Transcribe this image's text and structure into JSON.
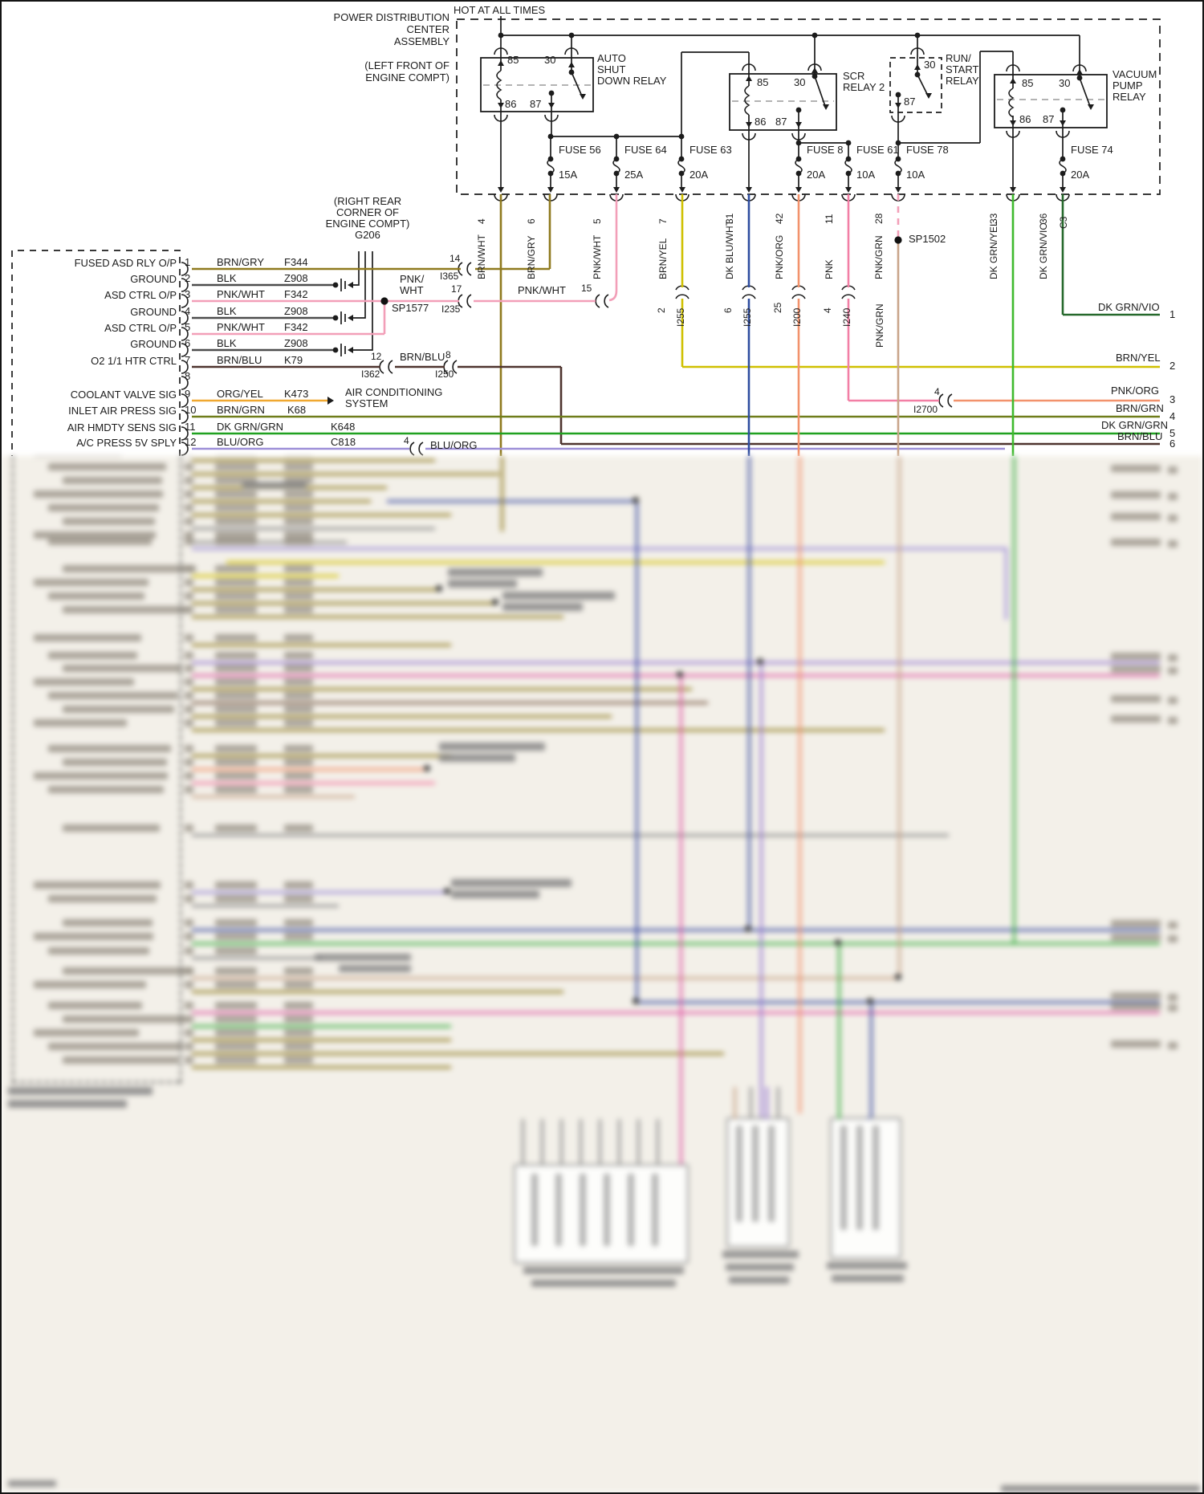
{
  "diagram": {
    "hot_label": "HOT AT ALL TIMES",
    "pdc_title_lines": [
      "POWER DISTRIBUTION",
      "CENTER",
      "ASSEMBLY"
    ],
    "pdc_location_lines": [
      "(LEFT FRONT OF",
      "ENGINE COMPT)"
    ],
    "ground_ref": {
      "lines": [
        "(RIGHT REAR",
        "CORNER OF",
        "ENGINE COMPT)"
      ],
      "id": "G206"
    },
    "relay_pin_labels": {
      "coil_hot": "85",
      "switch_hot": "30",
      "coil_gnd": "86",
      "switch_out": "87"
    },
    "relays": {
      "asd": {
        "name_lines": [
          "AUTO",
          "SHUT",
          "DOWN RELAY"
        ]
      },
      "scr": {
        "name_lines": [
          "SCR",
          "RELAY 2"
        ]
      },
      "run_start": {
        "name_lines": [
          "RUN/",
          "START",
          "RELAY"
        ]
      },
      "vacuum": {
        "name_lines": [
          "VACUUM",
          "PUMP",
          "RELAY"
        ]
      }
    },
    "fuses": [
      {
        "name": "FUSE 56",
        "amp": "15A"
      },
      {
        "name": "FUSE 64",
        "amp": "25A"
      },
      {
        "name": "FUSE 63",
        "amp": "20A"
      },
      {
        "name": "FUSE 8",
        "amp": "20A"
      },
      {
        "name": "FUSE 61",
        "amp": "10A"
      },
      {
        "name": "FUSE 78",
        "amp": "10A"
      },
      {
        "name": "FUSE 74",
        "amp": "20A"
      }
    ],
    "pdc_pins": [
      {
        "num": "4",
        "wire": "BRN/WHT"
      },
      {
        "num": "6",
        "wire": "BRN/GRY"
      },
      {
        "num": "5",
        "wire": "PNK/WHT"
      },
      {
        "num": "7",
        "wire": "BRN/YEL"
      },
      {
        "num": "31",
        "wire": "DK BLU/WHT"
      },
      {
        "num": "42",
        "wire": "PNK/ORG"
      },
      {
        "num": "11",
        "wire": "PNK"
      },
      {
        "num": "28",
        "wire": "PNK/GRN"
      },
      {
        "num": "33",
        "wire": "DK GRN/YEL"
      },
      {
        "num": "36",
        "wire": "DK GRN/VIO"
      }
    ],
    "connector_c3": "C3",
    "splices": {
      "sp1577": "SP1577",
      "sp1502": "SP1502"
    },
    "pnk_grn_lower_label": "PNK/GRN",
    "pcm_rows": [
      {
        "label": "FUSED ASD RLY O/P",
        "pin": "1",
        "wire": "BRN/GRY",
        "code": "F344"
      },
      {
        "label": "GROUND",
        "pin": "2",
        "wire": "BLK",
        "code": "Z908"
      },
      {
        "label": "ASD CTRL O/P",
        "pin": "3",
        "wire": "PNK/WHT",
        "code": "F342"
      },
      {
        "label": "GROUND",
        "pin": "4",
        "wire": "BLK",
        "code": "Z908"
      },
      {
        "label": "ASD CTRL O/P",
        "pin": "5",
        "wire": "PNK/WHT",
        "code": "F342"
      },
      {
        "label": "GROUND",
        "pin": "6",
        "wire": "BLK",
        "code": "Z908"
      },
      {
        "label": "O2 1/1 HTR CTRL",
        "pin": "7",
        "wire": "BRN/BLU",
        "code": "K79"
      },
      {
        "label": "",
        "pin": "8",
        "wire": "",
        "code": ""
      },
      {
        "label": "COOLANT VALVE SIG",
        "pin": "9",
        "wire": "ORG/YEL",
        "code": "K473"
      },
      {
        "label": "INLET AIR PRESS SIG",
        "pin": "10",
        "wire": "BRN/GRN",
        "code": "K68"
      },
      {
        "label": "AIR HMDTY SENS SIG",
        "pin": "11",
        "wire": "DK GRN/GRN",
        "code": "K648"
      },
      {
        "label": "A/C PRESS 5V SPLY",
        "pin": "12",
        "wire": "BLU/ORG",
        "code": "C818"
      }
    ],
    "inline_connectors": {
      "i365": {
        "pin": "14",
        "id": "I365"
      },
      "i235": {
        "pin": "17",
        "id": "I235"
      },
      "i255_horiz": {
        "pin": "15",
        "label": "PNK/WHT"
      },
      "i362": {
        "pin": "12",
        "id": "I362"
      },
      "i250": {
        "pin": "8",
        "id": "I250",
        "label": "BRN/BLU"
      },
      "i255_a": {
        "pin": "2",
        "id": "I255"
      },
      "i255_b": {
        "pin": "6",
        "id": "I255"
      },
      "i200": {
        "pin": "25",
        "id": "I200"
      },
      "i240": {
        "pin": "4",
        "id": "I240"
      },
      "i2700": {
        "pin": "4",
        "id": "I2700"
      },
      "c818_break": {
        "pin": "4",
        "label": "BLU/ORG"
      }
    },
    "row3_mid_label_lines": [
      "PNK/",
      "WHT"
    ],
    "ac_system_lines": [
      "AIR CONDITIONING",
      "SYSTEM"
    ],
    "right_edge": [
      {
        "wire": "DK GRN/VIO",
        "num": "1"
      },
      {
        "wire": "BRN/YEL",
        "num": "2"
      },
      {
        "wire": "PNK/ORG",
        "num": "3"
      },
      {
        "wire": "BRN/GRN",
        "num": "4"
      },
      {
        "wire": "DK GRN/GRN",
        "num": "5"
      },
      {
        "wire": "BRN/BLU",
        "num": "6"
      }
    ],
    "palette": {
      "brn_wht": "#8f7a1f",
      "pnk_wht": "#f29fb8",
      "brn_yel": "#cfc000",
      "dk_blu_wht": "#2f4da0",
      "pnk_org": "#f2926c",
      "pnk": "#f27fa5",
      "pnk_grn_tan": "#c9a58a",
      "dk_grn_yel": "#3fba2e",
      "dk_grn_vio": "#26692c",
      "brn_blu": "#4e342e",
      "org_yel": "#f0a830",
      "brn_grn": "#6f7d1a",
      "dk_grn_grn": "#21a121",
      "blu_org": "#9d8fd8",
      "blk": "#4d4d4d"
    }
  }
}
